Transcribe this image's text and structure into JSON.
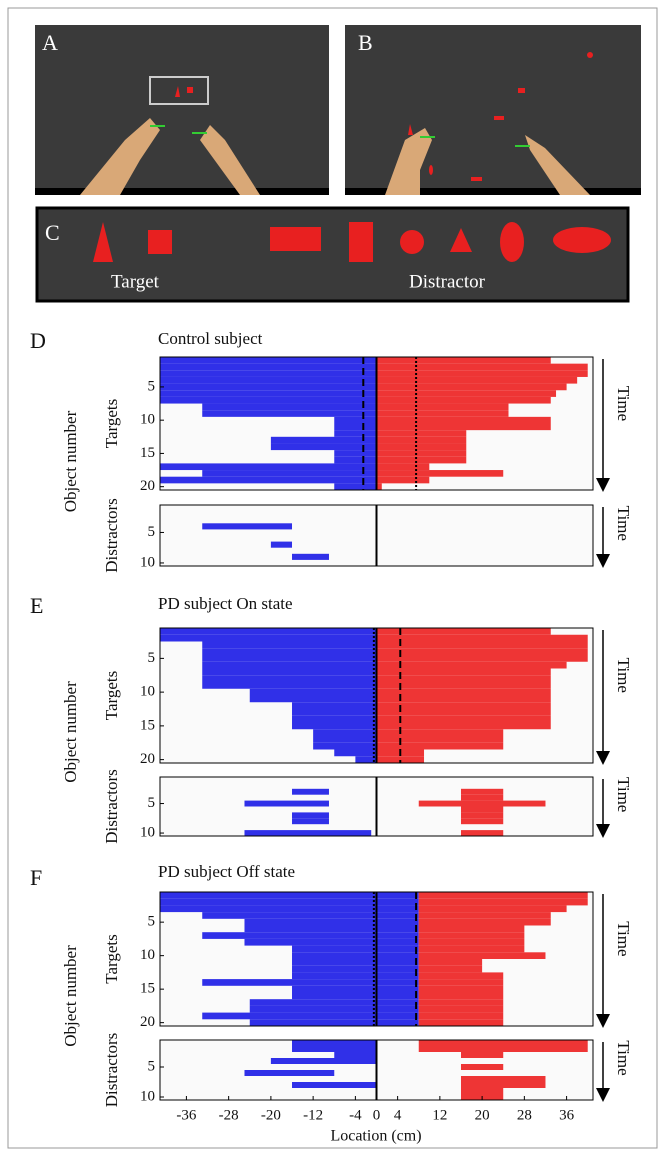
{
  "figure": {
    "a_label": "A",
    "b_label": "B",
    "c_label": "C",
    "target_label": "Target",
    "distractor_label": "Distractor",
    "xlabel": "Location (cm)"
  },
  "chart_data": [
    {
      "type": "heatmap",
      "panel_label": "D",
      "title": "Control subject",
      "ylabel": "Object number",
      "targets_label": "Targets",
      "distractors_label": "Distractors",
      "time_label": "Time",
      "xlim": [
        -41,
        41
      ],
      "color_left": "#3030e8",
      "color_right": "#ee3535",
      "targets": {
        "ylim": [
          0.5,
          20.5
        ],
        "yticks": [
          5,
          10,
          15,
          20
        ],
        "blue": [
          [
            -41,
            0
          ],
          [
            -41,
            0
          ],
          [
            -41,
            0
          ],
          [
            -41,
            0
          ],
          [
            -41,
            0
          ],
          [
            -41,
            0
          ],
          [
            -41,
            0
          ],
          [
            -33,
            0
          ],
          [
            -33,
            0
          ],
          [
            -8,
            0
          ],
          [
            -8,
            0
          ],
          [
            -8,
            0
          ],
          [
            -20,
            0
          ],
          [
            -20,
            0
          ],
          [
            -8,
            0
          ],
          [
            -8,
            0
          ],
          [
            -41,
            0
          ],
          [
            -33,
            0
          ],
          [
            -41,
            0
          ],
          [
            -8,
            0
          ]
        ],
        "red": [
          [
            0,
            33
          ],
          [
            0,
            40
          ],
          [
            0,
            40
          ],
          [
            0,
            38
          ],
          [
            0,
            36
          ],
          [
            0,
            34
          ],
          [
            0,
            33
          ],
          [
            0,
            25
          ],
          [
            0,
            25
          ],
          [
            0,
            33
          ],
          [
            0,
            33
          ],
          [
            0,
            17
          ],
          [
            0,
            17
          ],
          [
            0,
            17
          ],
          [
            0,
            17
          ],
          [
            0,
            17
          ],
          [
            0,
            10
          ],
          [
            0,
            24
          ],
          [
            0,
            10
          ],
          [
            0,
            1
          ]
        ],
        "markers": [
          {
            "x": -2.5,
            "style": "dashed"
          },
          {
            "x": 7.5,
            "style": "dotted"
          }
        ]
      },
      "distractors": {
        "ylim": [
          0.5,
          10.5
        ],
        "yticks": [
          5,
          10
        ],
        "blue": [
          null,
          null,
          null,
          [
            -33,
            -16
          ],
          null,
          null,
          [
            -20,
            -16
          ],
          null,
          [
            -16,
            -9
          ],
          null
        ],
        "red": [
          null,
          null,
          null,
          null,
          null,
          null,
          null,
          null,
          null,
          null
        ]
      }
    },
    {
      "type": "heatmap",
      "panel_label": "E",
      "title": "PD subject On state",
      "ylabel": "Object number",
      "targets_label": "Targets",
      "distractors_label": "Distractors",
      "time_label": "Time",
      "xlim": [
        -41,
        41
      ],
      "color_left": "#3030e8",
      "color_right": "#ee3535",
      "targets": {
        "ylim": [
          0.5,
          20.5
        ],
        "yticks": [
          5,
          10,
          15,
          20
        ],
        "blue": [
          [
            -41,
            0
          ],
          [
            -41,
            0
          ],
          [
            -33,
            0
          ],
          [
            -33,
            0
          ],
          [
            -33,
            0
          ],
          [
            -33,
            0
          ],
          [
            -33,
            0
          ],
          [
            -33,
            0
          ],
          [
            -33,
            0
          ],
          [
            -24,
            0
          ],
          [
            -24,
            0
          ],
          [
            -16,
            0
          ],
          [
            -16,
            0
          ],
          [
            -16,
            0
          ],
          [
            -16,
            0
          ],
          [
            -12,
            0
          ],
          [
            -12,
            0
          ],
          [
            -12,
            0
          ],
          [
            -8,
            0
          ],
          [
            -4,
            0
          ]
        ],
        "red": [
          [
            0,
            33
          ],
          [
            0,
            40
          ],
          [
            0,
            40
          ],
          [
            0,
            40
          ],
          [
            0,
            40
          ],
          [
            0,
            36
          ],
          [
            0,
            33
          ],
          [
            0,
            33
          ],
          [
            0,
            33
          ],
          [
            0,
            33
          ],
          [
            0,
            33
          ],
          [
            0,
            33
          ],
          [
            0,
            33
          ],
          [
            0,
            33
          ],
          [
            0,
            33
          ],
          [
            0,
            24
          ],
          [
            0,
            24
          ],
          [
            0,
            24
          ],
          [
            0,
            9
          ],
          [
            0,
            9
          ]
        ],
        "markers": [
          {
            "x": -0.5,
            "style": "dotted"
          },
          {
            "x": 4.5,
            "style": "dashed"
          }
        ]
      },
      "distractors": {
        "ylim": [
          0.5,
          10.5
        ],
        "yticks": [
          5,
          10
        ],
        "blue": [
          null,
          null,
          [
            -16,
            -9
          ],
          null,
          [
            -25,
            -9
          ],
          null,
          [
            -16,
            -9
          ],
          [
            -16,
            -9
          ],
          null,
          [
            -25,
            -1
          ]
        ],
        "red": [
          null,
          null,
          [
            16,
            24
          ],
          [
            16,
            24
          ],
          [
            8,
            32
          ],
          [
            16,
            24
          ],
          [
            16,
            24
          ],
          [
            16,
            24
          ],
          null,
          [
            16,
            24
          ]
        ]
      }
    },
    {
      "type": "heatmap",
      "panel_label": "F",
      "title": "PD subject Off state",
      "ylabel": "Object number",
      "targets_label": "Targets",
      "distractors_label": "Distractors",
      "time_label": "Time",
      "xlim": [
        -41,
        41
      ],
      "color_left": "#3030e8",
      "color_right": "#ee3535",
      "xticks": [
        -36,
        -28,
        -20,
        -12,
        -4,
        0,
        4,
        12,
        20,
        28,
        36
      ],
      "targets": {
        "ylim": [
          0.5,
          20.5
        ],
        "yticks": [
          5,
          10,
          15,
          20
        ],
        "blue": [
          [
            -41,
            8
          ],
          [
            -41,
            8
          ],
          [
            -41,
            8
          ],
          [
            -33,
            8
          ],
          [
            -25,
            8
          ],
          [
            -25,
            8
          ],
          [
            -33,
            8
          ],
          [
            -25,
            8
          ],
          [
            -16,
            8
          ],
          [
            -16,
            8
          ],
          [
            -16,
            8
          ],
          [
            -16,
            8
          ],
          [
            -16,
            8
          ],
          [
            -33,
            8
          ],
          [
            -16,
            8
          ],
          [
            -16,
            8
          ],
          [
            -24,
            8
          ],
          [
            -24,
            8
          ],
          [
            -33,
            8
          ],
          [
            -24,
            8
          ]
        ],
        "red": [
          [
            8,
            40
          ],
          [
            8,
            40
          ],
          [
            8,
            36
          ],
          [
            8,
            33
          ],
          [
            8,
            33
          ],
          [
            8,
            28
          ],
          [
            8,
            28
          ],
          [
            8,
            28
          ],
          [
            8,
            28
          ],
          [
            8,
            32
          ],
          [
            8,
            20
          ],
          [
            8,
            20
          ],
          [
            8,
            24
          ],
          [
            8,
            24
          ],
          [
            8,
            24
          ],
          [
            8,
            24
          ],
          [
            8,
            24
          ],
          [
            8,
            24
          ],
          [
            8,
            24
          ],
          [
            8,
            24
          ]
        ],
        "markers": [
          {
            "x": -0.5,
            "style": "dotted"
          },
          {
            "x": 7.5,
            "style": "dashed"
          }
        ]
      },
      "distractors": {
        "ylim": [
          0.5,
          10.5
        ],
        "yticks": [
          5,
          10
        ],
        "blue": [
          [
            -16,
            0
          ],
          [
            -16,
            0
          ],
          [
            -8,
            0
          ],
          [
            -20,
            0
          ],
          null,
          [
            -25,
            -8
          ],
          null,
          [
            -16,
            0
          ],
          null,
          null
        ],
        "red": [
          [
            8,
            40
          ],
          [
            8,
            40
          ],
          [
            16,
            24
          ],
          null,
          [
            16,
            24
          ],
          null,
          [
            16,
            32
          ],
          [
            16,
            32
          ],
          [
            16,
            24
          ],
          [
            16,
            24
          ]
        ]
      }
    }
  ]
}
